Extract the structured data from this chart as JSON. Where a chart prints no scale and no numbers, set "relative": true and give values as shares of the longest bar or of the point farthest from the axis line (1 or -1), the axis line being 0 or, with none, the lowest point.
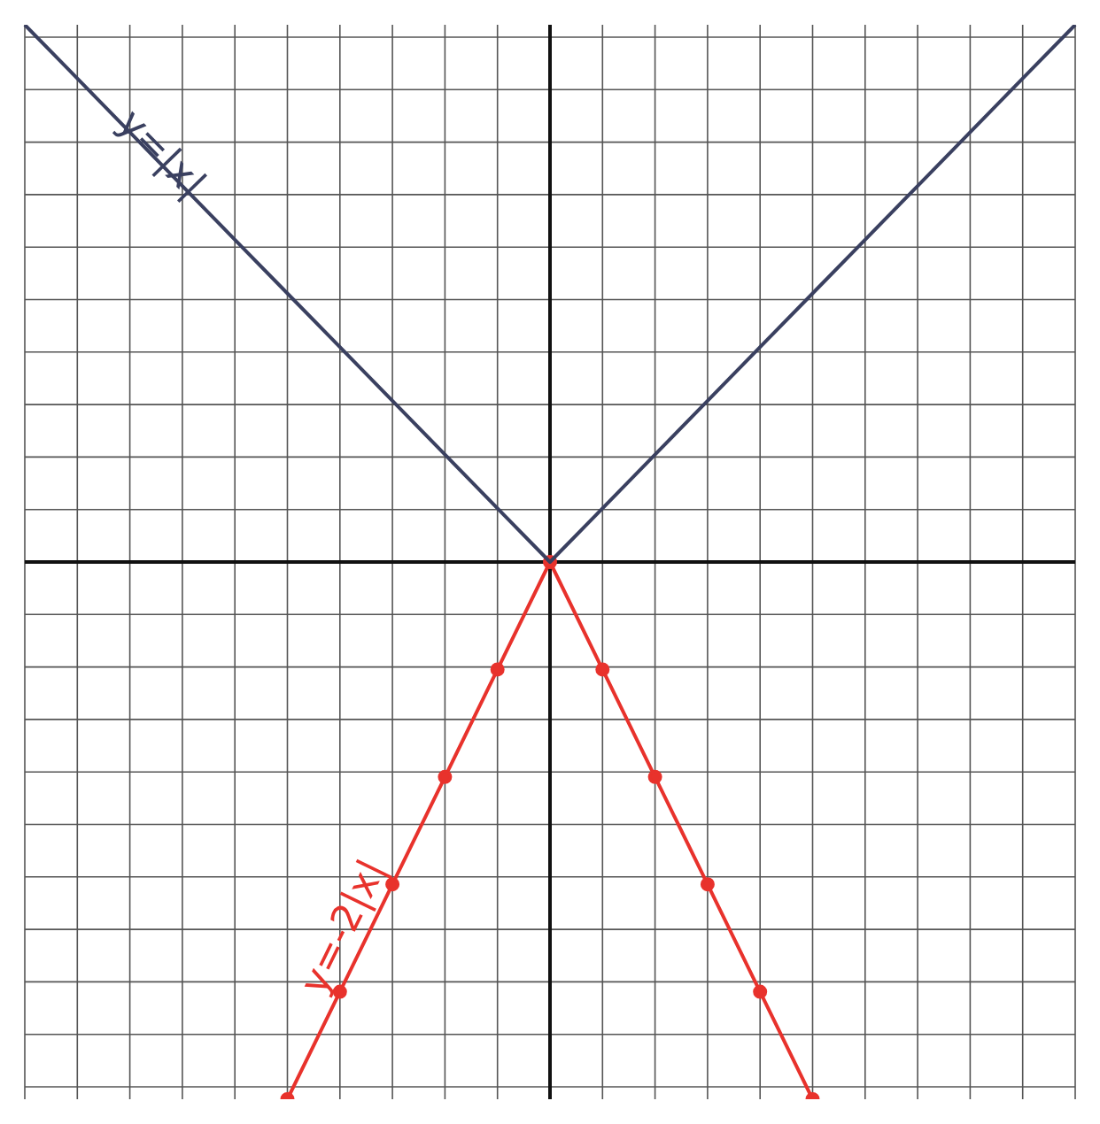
{
  "chart_data": {
    "type": "line",
    "relative": true,
    "grid": true,
    "line_style": "solid",
    "annotations": [
      "y=|x|",
      "y=-2|x|"
    ],
    "categories": [
      null,
      null,
      null,
      null,
      null,
      null,
      null,
      null,
      null,
      null,
      null,
      null,
      null,
      null,
      null,
      null,
      null,
      null,
      null,
      null,
      null
    ],
    "series": [
      {
        "color": "#3a4060",
        "marker": "none",
        "values": [
          1,
          0.9,
          0.8,
          0.7,
          0.6,
          0.5,
          0.4,
          0.3,
          0.2,
          0.1,
          0,
          0.1,
          0.2,
          0.3,
          0.4,
          0.5,
          0.6,
          0.7,
          0.8,
          0.9,
          1
        ]
      },
      {
        "color": "#e8322c",
        "marker": "circle",
        "values": [
          null,
          null,
          null,
          null,
          null,
          -1,
          -0.8,
          -0.6,
          -0.4,
          -0.2,
          0,
          -0.2,
          -0.4,
          -0.6,
          -0.8,
          -1,
          null,
          null,
          null,
          null,
          null
        ]
      }
    ]
  }
}
